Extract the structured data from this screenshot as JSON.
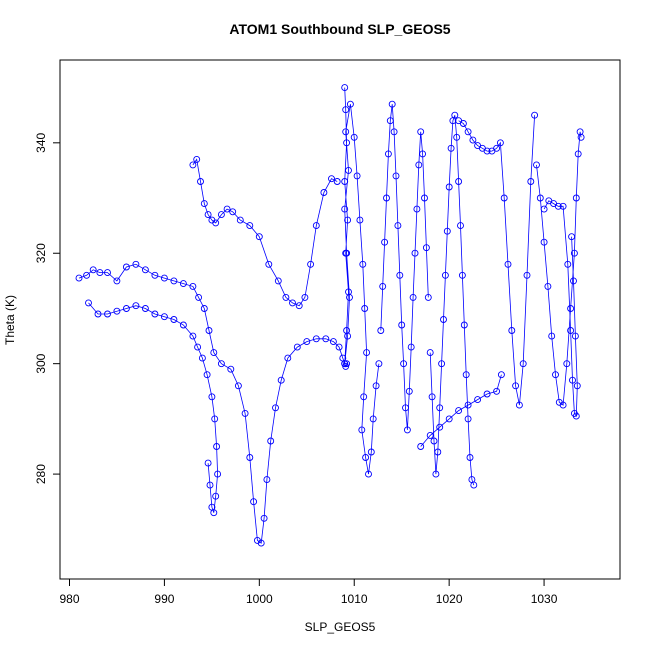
{
  "chart_data": {
    "type": "scatter",
    "title": "ATOM1 Southbound SLP_GEOS5",
    "xlabel": "SLP_GEOS5",
    "ylabel": "Theta (K)",
    "xlim": [
      979,
      1038
    ],
    "ylim": [
      261,
      355
    ],
    "xticks": [
      980,
      990,
      1000,
      1010,
      1020,
      1030
    ],
    "yticks": [
      280,
      300,
      320,
      340
    ],
    "grid": false,
    "legend": "none",
    "series": [
      {
        "style": "line+open-circle",
        "color": "#0000ff",
        "x": [
          981.0,
          981.8,
          982.5,
          983.2,
          984.0,
          985.0,
          986.0,
          987.0,
          988.0,
          989.0,
          990.0,
          991.0,
          992.0,
          993.0,
          993.6,
          994.2,
          994.7,
          995.2,
          996.0,
          997.0,
          997.8,
          998.5,
          999.0,
          999.4,
          999.8,
          1000.2,
          1000.5,
          1000.8,
          1001.2,
          1001.7,
          1002.3,
          1003.0,
          1004.0,
          1005.0,
          1006.0,
          1007.0,
          1007.8,
          1008.4,
          1008.8,
          1009.0,
          1009.1,
          1009.2
        ],
        "y": [
          315.5,
          316.0,
          317.0,
          316.5,
          316.5,
          315.0,
          317.5,
          318.0,
          317.0,
          316.0,
          315.5,
          315.0,
          314.5,
          314.0,
          312.0,
          310.0,
          306.0,
          302.0,
          300.0,
          299.0,
          296.0,
          291.0,
          283.0,
          275.0,
          268.0,
          267.5,
          272.0,
          279.0,
          286.0,
          292.0,
          297.0,
          301.0,
          303.0,
          304.0,
          304.5,
          304.5,
          304.0,
          303.0,
          301.0,
          300.0,
          299.5,
          300.0
        ]
      },
      {
        "style": "line+open-circle",
        "color": "#0000ff",
        "x": [
          982.0,
          983.0,
          984.0,
          985.0,
          986.0,
          987.0,
          988.0,
          989.0,
          990.0,
          991.0,
          992.0,
          993.0,
          993.5,
          994.0,
          994.5,
          995.0,
          995.3,
          995.5,
          995.6,
          995.4,
          995.2,
          995.0,
          994.8,
          994.6
        ],
        "y": [
          311.0,
          309.0,
          309.0,
          309.5,
          310.0,
          310.5,
          310.0,
          309.0,
          308.5,
          308.0,
          307.0,
          305.0,
          303.0,
          301.0,
          298.0,
          294.0,
          290.0,
          285.0,
          280.0,
          276.0,
          273.0,
          274.0,
          278.0,
          282.0
        ]
      },
      {
        "style": "line+open-circle",
        "color": "#0000ff",
        "x": [
          993.0,
          993.4,
          993.8,
          994.2,
          994.6,
          995.0,
          995.4,
          996.0,
          996.6,
          997.2,
          998.0,
          999.0,
          1000.0,
          1001.0,
          1002.0,
          1002.8,
          1003.5,
          1004.2,
          1004.8,
          1005.4,
          1006.0,
          1006.8,
          1007.6,
          1008.2
        ],
        "y": [
          336.0,
          337.0,
          333.0,
          329.0,
          327.0,
          326.0,
          325.5,
          327.0,
          328.0,
          327.5,
          326.0,
          325.0,
          323.0,
          318.0,
          315.0,
          312.0,
          311.0,
          310.5,
          312.0,
          318.0,
          325.0,
          331.0,
          333.5,
          333.0
        ]
      },
      {
        "style": "line+open-circle",
        "color": "#0000ff",
        "x": [
          1009.0,
          1009.1,
          1009.2,
          1009.0,
          1009.3,
          1009.1,
          1009.4,
          1009.2,
          1009.0,
          1009.3,
          1009.5,
          1009.2,
          1009.0,
          1009.4,
          1009.1,
          1009.6,
          1010.0,
          1010.3,
          1010.6,
          1010.9,
          1011.1,
          1011.3,
          1011.0,
          1010.8,
          1011.2,
          1011.5,
          1011.8,
          1012.0,
          1012.3,
          1012.6
        ],
        "y": [
          350.0,
          346.0,
          340.0,
          333.0,
          326.0,
          320.0,
          313.0,
          306.0,
          300.0,
          305.0,
          312.0,
          320.0,
          328.0,
          335.0,
          342.0,
          347.0,
          341.0,
          334.0,
          326.0,
          318.0,
          310.0,
          302.0,
          294.0,
          288.0,
          283.0,
          280.0,
          284.0,
          290.0,
          296.0,
          300.0
        ]
      },
      {
        "style": "line+open-circle",
        "color": "#0000ff",
        "x": [
          1012.8,
          1013.0,
          1013.2,
          1013.4,
          1013.6,
          1013.8,
          1014.0,
          1014.2,
          1014.4,
          1014.6,
          1014.8,
          1015.0,
          1015.2,
          1015.4,
          1015.6,
          1015.8,
          1016.0,
          1016.2,
          1016.4,
          1016.6,
          1016.8,
          1017.0,
          1017.2,
          1017.4,
          1017.6,
          1017.8
        ],
        "y": [
          306.0,
          314.0,
          322.0,
          330.0,
          338.0,
          344.0,
          347.0,
          342.0,
          334.0,
          325.0,
          316.0,
          307.0,
          300.0,
          292.0,
          288.0,
          295.0,
          303.0,
          312.0,
          320.0,
          328.0,
          336.0,
          342.0,
          338.0,
          330.0,
          321.0,
          312.0
        ]
      },
      {
        "style": "line+open-circle",
        "color": "#0000ff",
        "x": [
          1018.0,
          1018.2,
          1018.4,
          1018.6,
          1018.8,
          1019.0,
          1019.2,
          1019.4,
          1019.6,
          1019.8,
          1020.0,
          1020.2,
          1020.4,
          1020.6,
          1020.8,
          1021.0,
          1021.2,
          1021.4,
          1021.6,
          1021.8,
          1022.0,
          1022.2,
          1022.4,
          1022.6
        ],
        "y": [
          302.0,
          294.0,
          286.0,
          280.0,
          284.0,
          292.0,
          300.0,
          308.0,
          316.0,
          324.0,
          332.0,
          339.0,
          344.0,
          345.0,
          341.0,
          333.0,
          325.0,
          316.0,
          307.0,
          298.0,
          290.0,
          283.0,
          279.0,
          278.0
        ]
      },
      {
        "style": "line+open-circle",
        "color": "#0000ff",
        "x": [
          1021.0,
          1021.5,
          1022.0,
          1022.5,
          1023.0,
          1023.5,
          1024.0,
          1024.5,
          1025.0,
          1025.4,
          1025.8,
          1026.2,
          1026.6,
          1027.0,
          1027.4,
          1027.8,
          1028.2,
          1028.6,
          1029.0
        ],
        "y": [
          344.0,
          343.5,
          342.0,
          340.5,
          339.5,
          339.0,
          338.5,
          338.5,
          339.0,
          340.0,
          330.0,
          318.0,
          306.0,
          296.0,
          292.5,
          300.0,
          316.0,
          333.0,
          345.0
        ]
      },
      {
        "style": "line+open-circle",
        "color": "#0000ff",
        "x": [
          1029.2,
          1029.6,
          1030.0,
          1030.4,
          1030.8,
          1031.2,
          1031.6,
          1032.0,
          1032.4,
          1032.8,
          1033.2,
          1033.4,
          1033.6,
          1033.8,
          1033.9
        ],
        "y": [
          336.0,
          330.0,
          322.0,
          314.0,
          305.0,
          298.0,
          293.0,
          292.5,
          300.0,
          310.0,
          320.0,
          330.0,
          338.0,
          342.0,
          341.0
        ]
      },
      {
        "style": "line+open-circle",
        "color": "#0000ff",
        "x": [
          1030.0,
          1030.5,
          1031.0,
          1031.5,
          1032.0,
          1032.5,
          1032.8,
          1033.0,
          1033.2,
          1033.4,
          1033.5,
          1033.3,
          1033.1,
          1032.9
        ],
        "y": [
          328.0,
          329.5,
          329.0,
          328.5,
          328.5,
          318.0,
          306.0,
          297.0,
          291.0,
          290.5,
          296.0,
          305.0,
          315.0,
          323.0
        ]
      },
      {
        "style": "line+open-circle",
        "color": "#0000ff",
        "x": [
          1017.0,
          1018.0,
          1019.0,
          1020.0,
          1021.0,
          1022.0,
          1023.0,
          1024.0,
          1025.0,
          1025.5
        ],
        "y": [
          285.0,
          287.0,
          288.5,
          290.0,
          291.5,
          292.5,
          293.5,
          294.5,
          295.0,
          298.0
        ]
      }
    ]
  }
}
